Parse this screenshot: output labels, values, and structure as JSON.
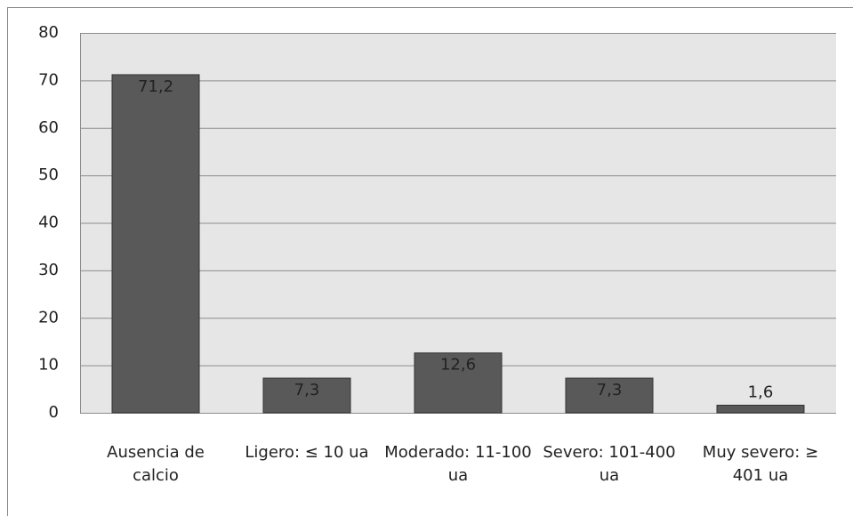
{
  "chart_data": {
    "type": "bar",
    "categories": [
      "Ausencia de calcio",
      "Ligero: ≤ 10 ua",
      "Moderado: 11-100 ua",
      "Severo: 101-400 ua",
      "Muy severo: ≥ 401 ua"
    ],
    "values": [
      71.2,
      7.3,
      12.6,
      7.3,
      1.6
    ],
    "value_labels": [
      "71,2",
      "7,3",
      "12,6",
      "7,3",
      "1,6"
    ],
    "color": "#595959",
    "ylim": [
      0,
      80
    ],
    "yticks": [
      0,
      10,
      20,
      30,
      40,
      50,
      60,
      70,
      80
    ],
    "grid": true
  }
}
